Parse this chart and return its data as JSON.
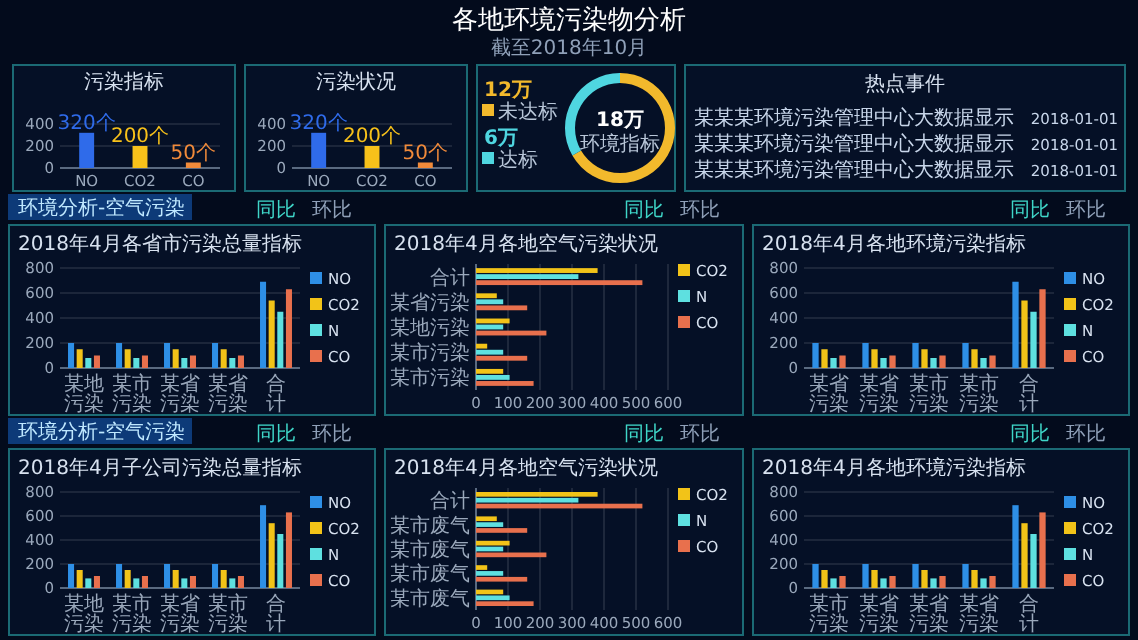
{
  "chart_data": [
    {
      "type": "other",
      "title": "各地环境污染物分析",
      "subtitle": "截至2018年10月"
    },
    {
      "type": "bar",
      "title": "污染指标",
      "categories": [
        "NO",
        "CO2",
        "CO"
      ],
      "values": [
        320,
        200,
        50
      ],
      "colors": [
        "#2f6bea",
        "#f7c11a",
        "#f08a3a"
      ],
      "value_labels": [
        "320个",
        "200个",
        "50个"
      ],
      "ylim": [
        0,
        400
      ],
      "yticks": [
        0,
        200,
        400
      ],
      "grid": "y"
    },
    {
      "type": "bar",
      "title": "污染状况",
      "categories": [
        "NO",
        "CO2",
        "CO"
      ],
      "values": [
        320,
        200,
        50
      ],
      "colors": [
        "#2f6bea",
        "#f7c11a",
        "#f08a3a"
      ],
      "value_labels": [
        "320个",
        "200个",
        "50个"
      ],
      "ylim": [
        0,
        400
      ],
      "yticks": [
        0,
        200,
        400
      ],
      "grid": "y"
    },
    {
      "type": "donut",
      "categories": [
        "未达标",
        "达标"
      ],
      "values": [
        12,
        6
      ],
      "colors": [
        "#f2b92c",
        "#4fd6e0"
      ],
      "value_labels": [
        "12万",
        "6万"
      ],
      "legend": "left",
      "annotations": [
        "18万",
        "环境指标"
      ]
    },
    {
      "type": "other",
      "title": "热点事件",
      "annotations": [
        "某某某环境污染管理中心大数据显示",
        "2018-01-01",
        "某某某环境污染管理中心大数据显示",
        "2018-01-01",
        "某某某环境污染管理中心大数据显示",
        "2018-01-01"
      ]
    },
    {
      "type": "bar",
      "title": "2018年4月各省市污染总量指标",
      "categories": [
        "某地污染",
        "某市污染",
        "某省污染",
        "某省污染",
        "合计"
      ],
      "series": [
        {
          "name": "NO",
          "color": "#2e8fe6",
          "values": [
            200,
            200,
            200,
            200,
            690
          ]
        },
        {
          "name": "CO2",
          "color": "#f2c318",
          "values": [
            150,
            150,
            150,
            150,
            540
          ]
        },
        {
          "name": "N",
          "color": "#5ee0e0",
          "values": [
            80,
            80,
            80,
            80,
            450
          ]
        },
        {
          "name": "CO",
          "color": "#e8704d",
          "values": [
            100,
            100,
            100,
            100,
            630
          ]
        }
      ],
      "ylim": [
        0,
        800
      ],
      "yticks": [
        0,
        200,
        400,
        600,
        800
      ],
      "grid": "y",
      "legend": "right",
      "annotations": [
        "环境分析-空气污染",
        "同比",
        "环比"
      ]
    },
    {
      "type": "bar",
      "orientation": "horizontal",
      "title": "2018年4月各地空气污染状况",
      "categories": [
        "合计",
        "某省污染",
        "某地污染",
        "某市污染",
        "某市污染"
      ],
      "series": [
        {
          "name": "CO2",
          "color": "#f2c318",
          "values": [
            380,
            65,
            105,
            35,
            85
          ]
        },
        {
          "name": "N",
          "color": "#5ee0e0",
          "values": [
            320,
            85,
            85,
            85,
            105
          ]
        },
        {
          "name": "CO",
          "color": "#e8704d",
          "values": [
            520,
            160,
            220,
            160,
            180
          ]
        }
      ],
      "xlim": [
        0,
        600
      ],
      "xticks": [
        0,
        100,
        200,
        300,
        400,
        500,
        600
      ],
      "grid": "x",
      "legend": "right",
      "annotations": [
        "同比",
        "环比"
      ]
    },
    {
      "type": "bar",
      "title": "2018年4月各地环境污染指标",
      "categories": [
        "某省污染",
        "某省污染",
        "某市污染",
        "某市污染",
        "合计"
      ],
      "series": [
        {
          "name": "NO",
          "color": "#2e8fe6",
          "values": [
            200,
            200,
            200,
            200,
            690
          ]
        },
        {
          "name": "CO2",
          "color": "#f2c318",
          "values": [
            150,
            150,
            150,
            150,
            540
          ]
        },
        {
          "name": "N",
          "color": "#5ee0e0",
          "values": [
            80,
            80,
            80,
            80,
            450
          ]
        },
        {
          "name": "CO",
          "color": "#e8704d",
          "values": [
            100,
            100,
            100,
            100,
            630
          ]
        }
      ],
      "ylim": [
        0,
        800
      ],
      "yticks": [
        0,
        200,
        400,
        600,
        800
      ],
      "grid": "y",
      "legend": "right",
      "annotations": [
        "同比",
        "环比"
      ]
    },
    {
      "type": "bar",
      "title": "2018年4月子公司污染总量指标",
      "categories": [
        "某地污染",
        "某市污染",
        "某省污染",
        "某市污染",
        "合计"
      ],
      "series": [
        {
          "name": "NO",
          "color": "#2e8fe6",
          "values": [
            200,
            200,
            200,
            200,
            690
          ]
        },
        {
          "name": "CO2",
          "color": "#f2c318",
          "values": [
            150,
            150,
            150,
            150,
            540
          ]
        },
        {
          "name": "N",
          "color": "#5ee0e0",
          "values": [
            80,
            80,
            80,
            80,
            450
          ]
        },
        {
          "name": "CO",
          "color": "#e8704d",
          "values": [
            100,
            100,
            100,
            100,
            630
          ]
        }
      ],
      "ylim": [
        0,
        800
      ],
      "yticks": [
        0,
        200,
        400,
        600,
        800
      ],
      "grid": "y",
      "legend": "right",
      "annotations": [
        "环境分析-空气污染",
        "同比",
        "环比"
      ]
    },
    {
      "type": "bar",
      "orientation": "horizontal",
      "title": "2018年4月各地空气污染状况",
      "categories": [
        "合计",
        "某市废气",
        "某市废气",
        "某市废气",
        "某市废气"
      ],
      "series": [
        {
          "name": "CO2",
          "color": "#f2c318",
          "values": [
            380,
            65,
            105,
            35,
            85
          ]
        },
        {
          "name": "N",
          "color": "#5ee0e0",
          "values": [
            320,
            85,
            85,
            85,
            105
          ]
        },
        {
          "name": "CO",
          "color": "#e8704d",
          "values": [
            520,
            160,
            220,
            160,
            180
          ]
        }
      ],
      "xlim": [
        0,
        600
      ],
      "xticks": [
        0,
        100,
        200,
        300,
        400,
        500,
        600
      ],
      "grid": "x",
      "legend": "right",
      "annotations": [
        "同比",
        "环比"
      ]
    },
    {
      "type": "bar",
      "title": "2018年4月各地环境污染指标",
      "categories": [
        "某市污染",
        "某省污染",
        "某省污染",
        "某省污染",
        "合计"
      ],
      "series": [
        {
          "name": "NO",
          "color": "#2e8fe6",
          "values": [
            200,
            200,
            200,
            200,
            690
          ]
        },
        {
          "name": "CO2",
          "color": "#f2c318",
          "values": [
            150,
            150,
            150,
            150,
            540
          ]
        },
        {
          "name": "N",
          "color": "#5ee0e0",
          "values": [
            80,
            80,
            80,
            80,
            450
          ]
        },
        {
          "name": "CO",
          "color": "#e8704d",
          "values": [
            100,
            100,
            100,
            100,
            630
          ]
        }
      ],
      "ylim": [
        0,
        800
      ],
      "yticks": [
        0,
        200,
        400,
        600,
        800
      ],
      "grid": "y",
      "legend": "right",
      "annotations": [
        "同比",
        "环比"
      ]
    }
  ]
}
